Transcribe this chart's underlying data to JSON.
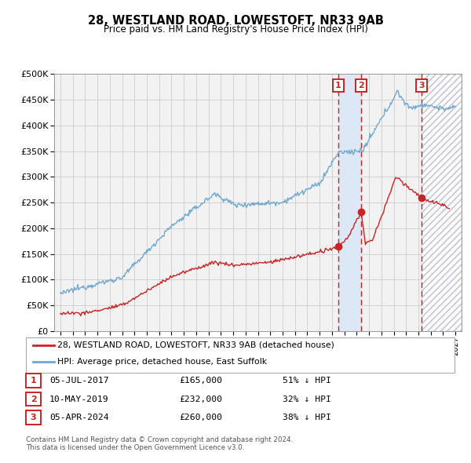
{
  "title": "28, WESTLAND ROAD, LOWESTOFT, NR33 9AB",
  "subtitle": "Price paid vs. HM Land Registry's House Price Index (HPI)",
  "transactions": [
    {
      "num": 1,
      "date": "05-JUL-2017",
      "year": 2017.51,
      "price": 165000,
      "pct": "51% ↓ HPI"
    },
    {
      "num": 2,
      "date": "10-MAY-2019",
      "year": 2019.36,
      "price": 232000,
      "pct": "32% ↓ HPI"
    },
    {
      "num": 3,
      "date": "05-APR-2024",
      "year": 2024.26,
      "price": 260000,
      "pct": "38% ↓ HPI"
    }
  ],
  "legend_property": "28, WESTLAND ROAD, LOWESTOFT, NR33 9AB (detached house)",
  "legend_hpi": "HPI: Average price, detached house, East Suffolk",
  "footer": "Contains HM Land Registry data © Crown copyright and database right 2024.\nThis data is licensed under the Open Government Licence v3.0.",
  "ylim": [
    0,
    500000
  ],
  "yticks": [
    0,
    50000,
    100000,
    150000,
    200000,
    250000,
    300000,
    350000,
    400000,
    450000,
    500000
  ],
  "xlim_start": 1994.5,
  "xlim_end": 2027.5,
  "hpi_color": "#6fa8d4",
  "property_color": "#cc2222",
  "shade_between_color": "#dce8f5",
  "background_color": "#f2f2f2",
  "grid_color": "#cccccc"
}
